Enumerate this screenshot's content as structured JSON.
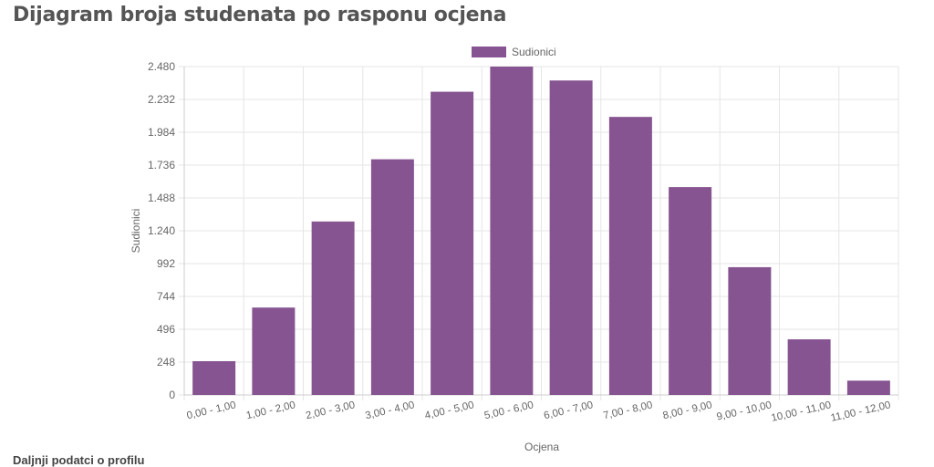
{
  "page": {
    "title": "Dijagram broja studenata po rasponu ocjena",
    "footer_text": "Daljnji podatci o profilu"
  },
  "colors": {
    "bar": "#865490",
    "grid": "#e6e6e6",
    "text": "#666666"
  },
  "chart_data": {
    "type": "bar",
    "title": "",
    "legend": {
      "position": "top",
      "entries": [
        "Sudionici"
      ]
    },
    "xlabel": "Ocjena",
    "ylabel": "Sudionici",
    "ylim": [
      0,
      2480
    ],
    "yticks": [
      0,
      248,
      496,
      744,
      992,
      1240,
      1488,
      1736,
      1984,
      2232,
      2480
    ],
    "ytick_labels": [
      "0",
      "248",
      "496",
      "744",
      "992",
      "1.240",
      "1.488",
      "1.736",
      "1.984",
      "2.232",
      "2.480"
    ],
    "grid": true,
    "categories": [
      "0,00 - 1,00",
      "1,00 - 2,00",
      "2,00 - 3,00",
      "3,00 - 4,00",
      "4,00 - 5,00",
      "5,00 - 6,00",
      "6,00 - 7,00",
      "7,00 - 8,00",
      "8,00 - 9,00",
      "9,00 - 10,00",
      "10,00 - 11,00",
      "11,00 - 12,00"
    ],
    "series": [
      {
        "name": "Sudionici",
        "values": [
          255,
          660,
          1310,
          1780,
          2290,
          2480,
          2375,
          2100,
          1570,
          965,
          420,
          108
        ]
      }
    ]
  }
}
